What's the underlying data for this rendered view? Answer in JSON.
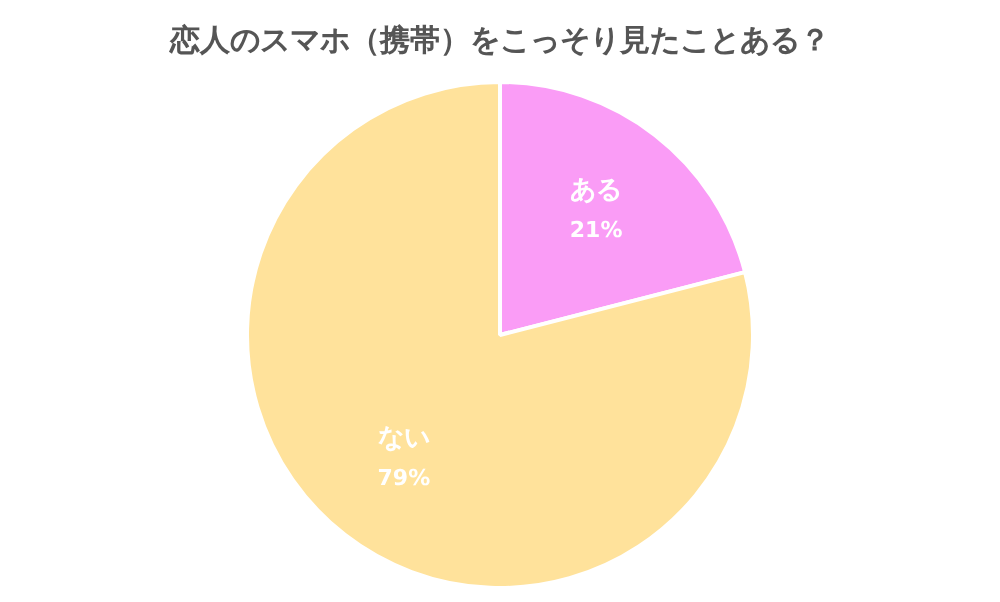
{
  "chart_data": {
    "type": "pie",
    "title": "恋人のスマホ（携帯）をこっそり見たことある？",
    "categories": [
      "ある",
      "ない"
    ],
    "values": [
      21,
      79
    ],
    "value_labels": [
      "21%",
      "79%"
    ],
    "colors": [
      "#fa9cf6",
      "#ffe29b"
    ],
    "legend": false
  }
}
